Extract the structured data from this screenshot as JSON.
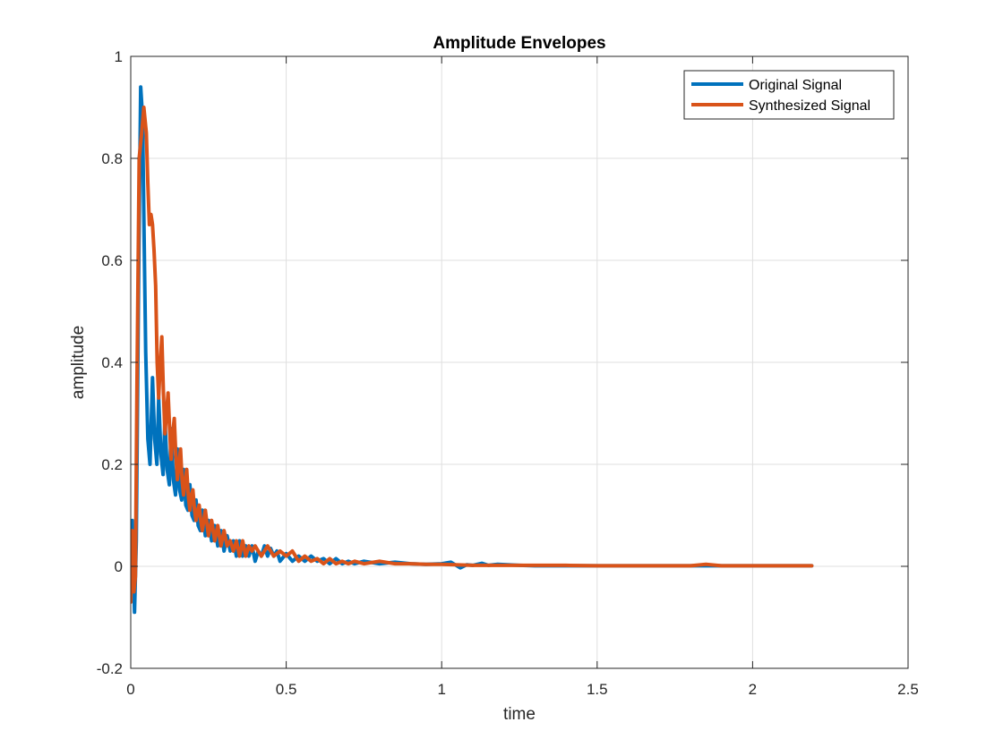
{
  "chart_data": {
    "type": "line",
    "title": "Amplitude Envelopes",
    "xlabel": "time",
    "ylabel": "amplitude",
    "xlim": [
      0,
      2.5
    ],
    "ylim": [
      -0.2,
      1
    ],
    "xticks": [
      0,
      0.5,
      1,
      1.5,
      2,
      2.5
    ],
    "xtick_labels": [
      "0",
      "0.5",
      "1",
      "1.5",
      "2",
      "2.5"
    ],
    "yticks": [
      -0.2,
      0,
      0.2,
      0.4,
      0.6,
      0.8,
      1
    ],
    "ytick_labels": [
      "-0.2",
      "0",
      "0.2",
      "0.4",
      "0.6",
      "0.8",
      "1"
    ],
    "grid": true,
    "legend_position": "top-right",
    "series": [
      {
        "name": "Original Signal",
        "color": "#0072BD",
        "x": [
          0,
          0.005,
          0.012,
          0.018,
          0.025,
          0.032,
          0.038,
          0.043,
          0.048,
          0.055,
          0.062,
          0.07,
          0.077,
          0.084,
          0.09,
          0.097,
          0.104,
          0.11,
          0.117,
          0.124,
          0.13,
          0.137,
          0.144,
          0.15,
          0.157,
          0.164,
          0.17,
          0.177,
          0.184,
          0.19,
          0.197,
          0.204,
          0.21,
          0.217,
          0.224,
          0.23,
          0.24,
          0.25,
          0.26,
          0.27,
          0.28,
          0.29,
          0.3,
          0.31,
          0.32,
          0.33,
          0.34,
          0.35,
          0.36,
          0.37,
          0.38,
          0.39,
          0.4,
          0.41,
          0.42,
          0.43,
          0.44,
          0.45,
          0.46,
          0.47,
          0.48,
          0.5,
          0.52,
          0.54,
          0.56,
          0.58,
          0.6,
          0.62,
          0.64,
          0.66,
          0.68,
          0.7,
          0.72,
          0.75,
          0.8,
          0.85,
          0.9,
          0.95,
          1.0,
          1.03,
          1.06,
          1.08,
          1.1,
          1.13,
          1.15,
          1.18,
          1.25,
          1.3,
          1.4,
          1.5,
          1.6,
          1.7,
          1.8,
          1.9,
          2.0,
          2.1,
          2.19
        ],
        "y": [
          -0.06,
          0.09,
          -0.09,
          0.05,
          0.55,
          0.94,
          0.88,
          0.65,
          0.42,
          0.25,
          0.2,
          0.37,
          0.25,
          0.2,
          0.33,
          0.22,
          0.18,
          0.29,
          0.19,
          0.16,
          0.27,
          0.17,
          0.14,
          0.23,
          0.15,
          0.13,
          0.19,
          0.12,
          0.11,
          0.16,
          0.1,
          0.09,
          0.13,
          0.08,
          0.07,
          0.11,
          0.06,
          0.09,
          0.05,
          0.08,
          0.04,
          0.07,
          0.03,
          0.06,
          0.03,
          0.05,
          0.02,
          0.05,
          0.02,
          0.04,
          0.02,
          0.04,
          0.01,
          0.03,
          0.02,
          0.04,
          0.02,
          0.035,
          0.02,
          0.03,
          0.01,
          0.025,
          0.01,
          0.02,
          0.01,
          0.02,
          0.01,
          0.015,
          0.005,
          0.015,
          0.005,
          0.01,
          0.005,
          0.01,
          0.005,
          0.008,
          0.005,
          0.004,
          0.005,
          0.008,
          -0.003,
          0.003,
          0.002,
          0.006,
          0.002,
          0.004,
          0.002,
          0.001,
          0.001,
          0.001,
          0.001,
          0.001,
          0.001,
          0.001,
          0.001,
          0.001,
          0.001
        ]
      },
      {
        "name": "Synthesized Signal",
        "color": "#D95319",
        "x": [
          0,
          0.005,
          0.01,
          0.015,
          0.02,
          0.027,
          0.035,
          0.042,
          0.05,
          0.055,
          0.06,
          0.065,
          0.07,
          0.075,
          0.08,
          0.085,
          0.09,
          0.095,
          0.1,
          0.105,
          0.11,
          0.115,
          0.12,
          0.125,
          0.13,
          0.135,
          0.14,
          0.145,
          0.15,
          0.155,
          0.16,
          0.165,
          0.17,
          0.175,
          0.18,
          0.185,
          0.19,
          0.195,
          0.2,
          0.205,
          0.21,
          0.215,
          0.22,
          0.225,
          0.23,
          0.24,
          0.25,
          0.26,
          0.27,
          0.28,
          0.29,
          0.3,
          0.31,
          0.32,
          0.33,
          0.34,
          0.35,
          0.36,
          0.37,
          0.38,
          0.39,
          0.4,
          0.42,
          0.44,
          0.46,
          0.48,
          0.5,
          0.52,
          0.54,
          0.56,
          0.58,
          0.6,
          0.62,
          0.64,
          0.66,
          0.68,
          0.7,
          0.72,
          0.75,
          0.8,
          0.85,
          0.9,
          0.95,
          1.0,
          1.1,
          1.2,
          1.3,
          1.4,
          1.5,
          1.6,
          1.7,
          1.8,
          1.85,
          1.9,
          2.0,
          2.1,
          2.19
        ],
        "y": [
          -0.07,
          0.07,
          -0.05,
          -0.02,
          0.35,
          0.8,
          0.85,
          0.9,
          0.85,
          0.75,
          0.67,
          0.69,
          0.67,
          0.62,
          0.55,
          0.4,
          0.33,
          0.4,
          0.45,
          0.34,
          0.26,
          0.3,
          0.34,
          0.27,
          0.21,
          0.26,
          0.29,
          0.22,
          0.17,
          0.2,
          0.23,
          0.17,
          0.14,
          0.17,
          0.19,
          0.14,
          0.11,
          0.14,
          0.15,
          0.11,
          0.09,
          0.11,
          0.12,
          0.09,
          0.07,
          0.11,
          0.06,
          0.09,
          0.05,
          0.08,
          0.04,
          0.07,
          0.04,
          0.05,
          0.03,
          0.05,
          0.02,
          0.05,
          0.02,
          0.04,
          0.03,
          0.04,
          0.02,
          0.04,
          0.02,
          0.03,
          0.02,
          0.03,
          0.01,
          0.02,
          0.01,
          0.015,
          0.005,
          0.015,
          0.005,
          0.01,
          0.005,
          0.01,
          0.005,
          0.01,
          0.005,
          0.005,
          0.004,
          0.004,
          0.002,
          0.002,
          0.002,
          0.002,
          0.001,
          0.001,
          0.001,
          0.001,
          0.004,
          0.001,
          0.001,
          0.001,
          0.001
        ]
      }
    ]
  }
}
